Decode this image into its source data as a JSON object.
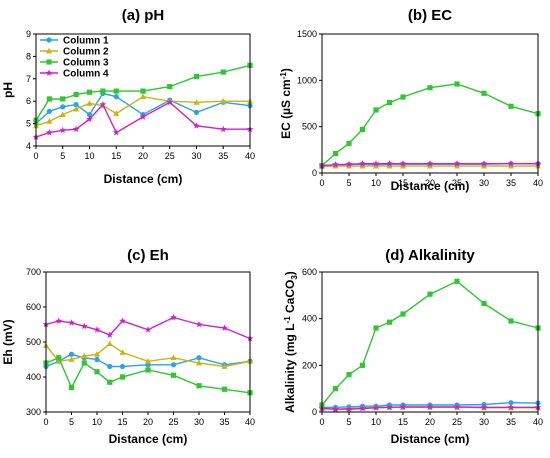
{
  "chart_data": [
    {
      "type": "line",
      "title": "(a) pH",
      "xlabel": "Distance (cm)",
      "ylabel": "pH",
      "ylabel_sup": "",
      "ylabel_tail": "",
      "ylabel_sub": "",
      "xlim": [
        0,
        40
      ],
      "ylim": [
        4,
        9
      ],
      "xticks": [
        0,
        5,
        10,
        15,
        20,
        25,
        30,
        35,
        40
      ],
      "yticks": [
        4,
        5,
        6,
        7,
        8,
        9
      ],
      "legend": "top-left",
      "x": [
        0,
        2.5,
        5,
        7.5,
        10,
        12.5,
        15,
        20,
        25,
        30,
        35,
        40
      ],
      "series": [
        {
          "name": "Column 1",
          "color": "#29a3e8",
          "values": [
            5.0,
            5.55,
            5.75,
            5.85,
            5.4,
            6.35,
            6.2,
            5.4,
            6.05,
            5.5,
            5.95,
            5.8
          ]
        },
        {
          "name": "Column 2",
          "color": "#c8b414",
          "values": [
            4.9,
            5.1,
            5.4,
            5.65,
            5.9,
            5.8,
            5.45,
            6.2,
            6.0,
            5.95,
            6.0,
            6.0
          ]
        },
        {
          "name": "Column 3",
          "color": "#2ec82e",
          "values": [
            5.15,
            6.1,
            6.1,
            6.3,
            6.4,
            6.45,
            6.45,
            6.45,
            6.65,
            7.1,
            7.3,
            7.6
          ]
        },
        {
          "name": "Column 4",
          "color": "#cc22cc",
          "values": [
            4.4,
            4.6,
            4.7,
            4.75,
            5.2,
            5.85,
            4.6,
            5.3,
            5.95,
            4.9,
            4.75,
            4.75
          ]
        }
      ]
    },
    {
      "type": "line",
      "title": "(b) EC",
      "xlabel": "Distance (cm)",
      "ylabel": "EC (µS cm",
      "ylabel_sup": "-1",
      "ylabel_tail": ")",
      "ylabel_sub": "",
      "xlim": [
        0,
        40
      ],
      "ylim": [
        0,
        1500
      ],
      "xticks": [
        0,
        5,
        10,
        15,
        20,
        25,
        30,
        35,
        40
      ],
      "yticks": [
        0,
        500,
        1000,
        1500
      ],
      "x": [
        0,
        2.5,
        5,
        7.5,
        10,
        12.5,
        15,
        20,
        25,
        30,
        35,
        40
      ],
      "series": [
        {
          "name": "",
          "color": "#29a3e8",
          "values": [
            80,
            85,
            90,
            95,
            90,
            95,
            95,
            95,
            95,
            95,
            100,
            100
          ]
        },
        {
          "name": "",
          "color": "#c8b414",
          "values": [
            70,
            75,
            75,
            75,
            75,
            75,
            75,
            75,
            75,
            75,
            75,
            75
          ]
        },
        {
          "name": "",
          "color": "#2ec82e",
          "values": [
            80,
            210,
            320,
            470,
            680,
            760,
            820,
            920,
            960,
            860,
            720,
            640
          ]
        },
        {
          "name": "",
          "color": "#cc22cc",
          "values": [
            80,
            90,
            95,
            100,
            100,
            100,
            100,
            100,
            100,
            100,
            100,
            100
          ]
        }
      ]
    },
    {
      "type": "line",
      "title": "(c) Eh",
      "xlabel": "Distance (cm)",
      "ylabel": "Eh (mV)",
      "ylabel_sup": "",
      "ylabel_tail": "",
      "ylabel_sub": "",
      "xlim": [
        0,
        40
      ],
      "ylim": [
        300,
        700
      ],
      "xticks": [
        0,
        5,
        10,
        15,
        20,
        25,
        30,
        35,
        40
      ],
      "yticks": [
        300,
        400,
        500,
        600,
        700
      ],
      "x": [
        0,
        2.5,
        5,
        7.5,
        10,
        12.5,
        15,
        20,
        25,
        30,
        35,
        40
      ],
      "series": [
        {
          "name": "",
          "color": "#29a3e8",
          "values": [
            430,
            445,
            465,
            455,
            450,
            430,
            430,
            435,
            435,
            455,
            435,
            445
          ]
        },
        {
          "name": "",
          "color": "#c8b414",
          "values": [
            490,
            445,
            450,
            460,
            465,
            495,
            470,
            445,
            455,
            440,
            430,
            445
          ]
        },
        {
          "name": "",
          "color": "#2ec82e",
          "values": [
            440,
            455,
            370,
            440,
            415,
            385,
            400,
            420,
            405,
            375,
            365,
            355
          ]
        },
        {
          "name": "",
          "color": "#cc22cc",
          "values": [
            550,
            560,
            555,
            545,
            535,
            520,
            560,
            535,
            570,
            550,
            540,
            510
          ]
        }
      ]
    },
    {
      "type": "line",
      "title": "(d) Alkalinity",
      "xlabel": "Distance (cm)",
      "ylabel": "Alkalinity (mg L",
      "ylabel_sup": "-1",
      "ylabel_tail": " CaCO",
      "ylabel_sub": "3",
      "ylabel_end": ")",
      "xlim": [
        0,
        40
      ],
      "ylim": [
        0,
        600
      ],
      "xticks": [
        0,
        5,
        10,
        15,
        20,
        25,
        30,
        35,
        40
      ],
      "yticks": [
        0,
        200,
        400,
        600
      ],
      "x": [
        0,
        2.5,
        5,
        7.5,
        10,
        12.5,
        15,
        20,
        25,
        30,
        35,
        40
      ],
      "series": [
        {
          "name": "",
          "color": "#29a3e8",
          "values": [
            20,
            20,
            22,
            25,
            25,
            30,
            30,
            30,
            30,
            32,
            40,
            38
          ]
        },
        {
          "name": "",
          "color": "#c8b414",
          "values": [
            15,
            12,
            15,
            18,
            20,
            20,
            20,
            20,
            20,
            18,
            18,
            18
          ]
        },
        {
          "name": "",
          "color": "#2ec82e",
          "values": [
            30,
            100,
            160,
            200,
            360,
            385,
            420,
            505,
            560,
            465,
            390,
            360
          ]
        },
        {
          "name": "",
          "color": "#cc22cc",
          "values": [
            15,
            12,
            12,
            15,
            18,
            20,
            22,
            22,
            22,
            20,
            20,
            20
          ]
        }
      ]
    }
  ]
}
